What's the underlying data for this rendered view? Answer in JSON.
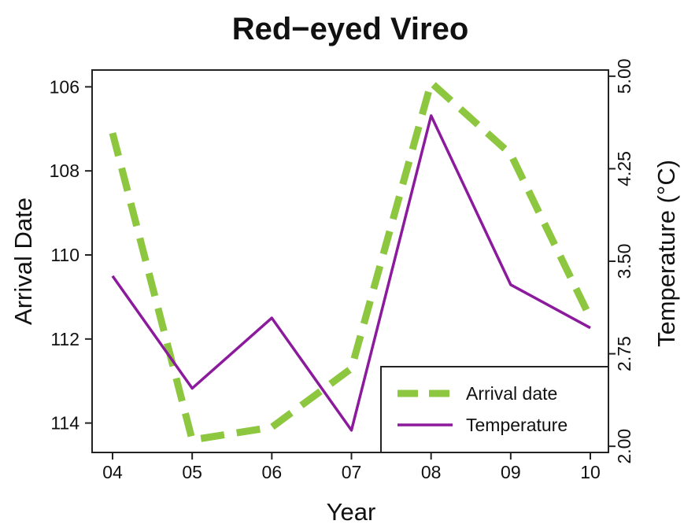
{
  "chart_data": {
    "type": "line",
    "title": "Red−eyed Vireo",
    "xlabel": "Year",
    "ylabel": "Arrival Date",
    "y2label": "Temperature (°C)",
    "categories": [
      "04",
      "05",
      "06",
      "07",
      "08",
      "09",
      "10"
    ],
    "ylim": [
      114.7,
      105.6
    ],
    "y_ticks": [
      "106",
      "108",
      "110",
      "112",
      "114"
    ],
    "y2lim": [
      1.95,
      5.05
    ],
    "y2_ticks": [
      "2.00",
      "2.75",
      "3.50",
      "4.25",
      "5.00"
    ],
    "series": [
      {
        "name": "Arrival date",
        "axis": "left",
        "style": "dashed",
        "color": "#8dc63f",
        "values": [
          107.1,
          114.4,
          114.1,
          112.7,
          105.9,
          107.6,
          111.5
        ]
      },
      {
        "name": "Temperature",
        "axis": "right",
        "style": "solid",
        "color": "#8b1a9c",
        "values": [
          3.38,
          2.47,
          3.04,
          2.13,
          4.68,
          3.31,
          2.96
        ]
      }
    ],
    "legend_position": "bottom-right",
    "grid": false
  }
}
